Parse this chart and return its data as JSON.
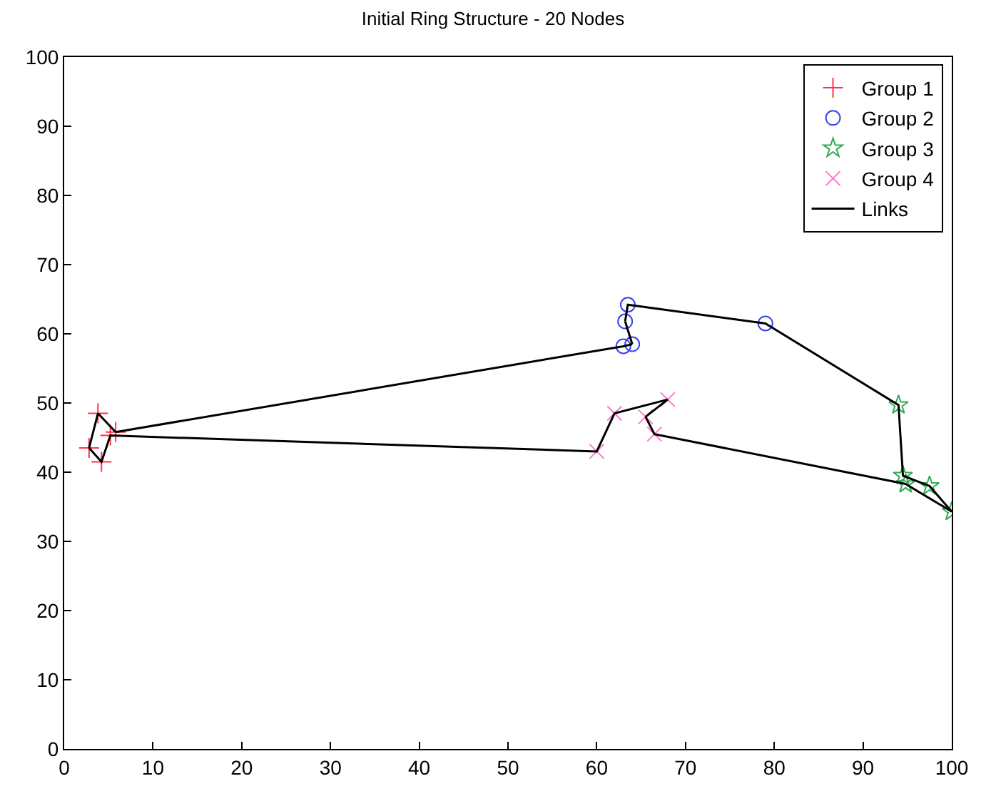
{
  "chart_data": {
    "type": "scatter",
    "title": "Initial Ring Structure - 20 Nodes",
    "xlim": [
      0,
      100
    ],
    "xticks": [
      0,
      10,
      20,
      30,
      40,
      50,
      60,
      70,
      80,
      90,
      100
    ],
    "ylim": [
      0,
      100
    ],
    "yticks": [
      0,
      10,
      20,
      30,
      40,
      50,
      60,
      70,
      80,
      90,
      100
    ],
    "legend": "top right",
    "series": [
      {
        "name": "Group 1",
        "color": "#ff3344",
        "marker": "cross",
        "x": [
          3.8,
          5.8,
          5.2,
          2.8,
          4.2
        ],
        "values": [
          48.5,
          45.8,
          45.3,
          43.5,
          41.5
        ]
      },
      {
        "name": "Group 2",
        "color": "#3344ee",
        "marker": "circle",
        "x": [
          63.5,
          63.2,
          63,
          64,
          79
        ],
        "values": [
          64.2,
          61.8,
          58.2,
          58.5,
          61.5
        ]
      },
      {
        "name": "Group 3",
        "color": "#33aa55",
        "marker": "star",
        "x": [
          94,
          94.5,
          94.8,
          97.5,
          100
        ],
        "values": [
          49.7,
          39.5,
          38.3,
          38,
          34.3
        ]
      },
      {
        "name": "Group 4",
        "color": "#ff77cc",
        "marker": "x",
        "x": [
          60,
          62,
          68,
          65.5,
          66.5
        ],
        "values": [
          43,
          48.5,
          50.5,
          48,
          45.5
        ]
      },
      {
        "name": "Links",
        "type": "line",
        "color": "#000000",
        "marker": "none",
        "x": [
          5.8,
          63,
          64
        ],
        "values": [
          45.8,
          58.2,
          58.5
        ]
      },
      {
        "type": "line",
        "color": "#000000",
        "marker": "none",
        "x": [
          64,
          63.2
        ],
        "values": [
          58.5,
          61.8
        ]
      },
      {
        "type": "line",
        "color": "#000000",
        "marker": "none",
        "x": [
          63.2,
          63.5,
          79,
          94,
          94.5,
          97.5,
          100
        ],
        "values": [
          61.8,
          64.2,
          61.5,
          49.7,
          39.5,
          38,
          34.3
        ]
      },
      {
        "type": "line",
        "color": "#000000",
        "marker": "none",
        "x": [
          100,
          94.8,
          66.5,
          65.5
        ],
        "values": [
          34.3,
          38.3,
          45.5,
          48
        ]
      },
      {
        "type": "line",
        "color": "#000000",
        "marker": "none",
        "x": [
          65.5,
          68
        ],
        "values": [
          48,
          50.5
        ]
      },
      {
        "type": "line",
        "color": "#000000",
        "marker": "none",
        "x": [
          68,
          62,
          60,
          5.2,
          4.2,
          2.8
        ],
        "values": [
          50.5,
          48.5,
          43,
          45.3,
          41.5,
          43.5
        ]
      },
      {
        "type": "line",
        "color": "#000000",
        "marker": "none",
        "x": [
          2.8,
          3.8,
          5.8
        ],
        "values": [
          43.5,
          48.5,
          45.8
        ]
      }
    ]
  }
}
